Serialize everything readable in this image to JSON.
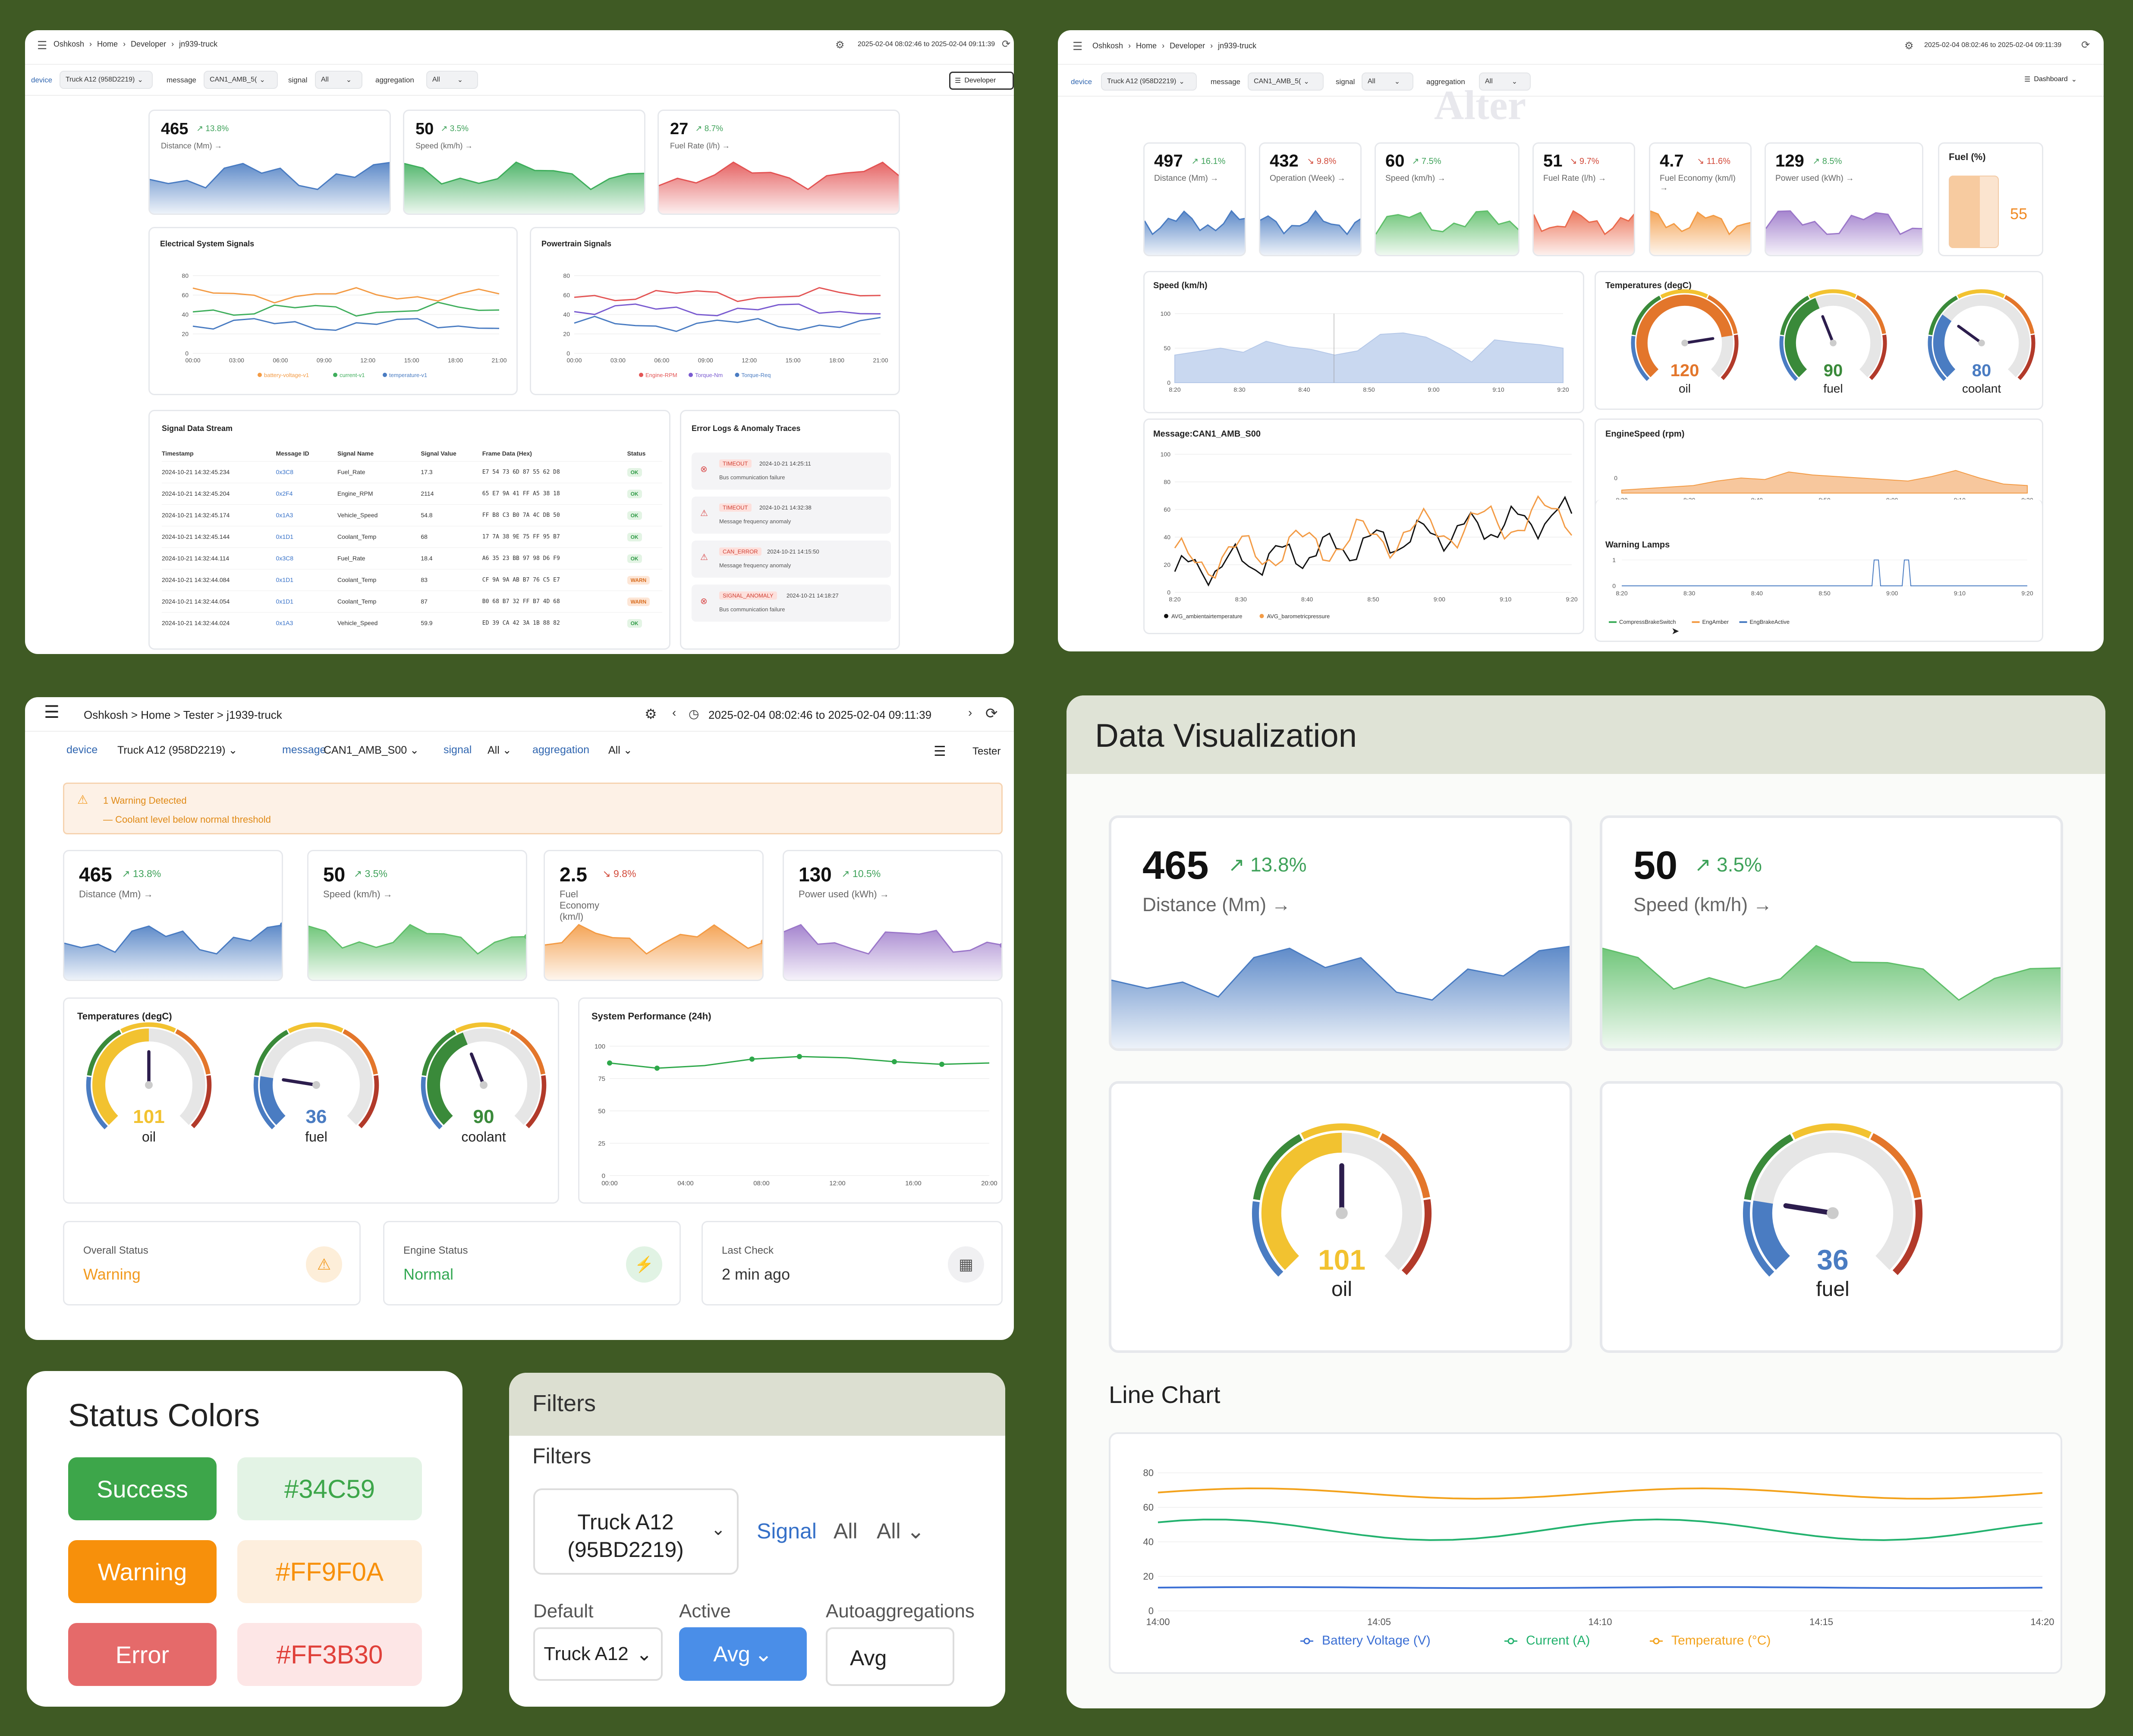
{
  "p1": {
    "breadcrumb": [
      "Oshkosh",
      "Home",
      "Developer",
      "jn939-truck"
    ],
    "range": "2025-02-04 08:02:46 to 2025-02-04 09:11:39",
    "filters": {
      "device_label": "device",
      "device": "Truck A12 (958D2219)",
      "message_label": "message",
      "message": "CAN1_AMB_5(",
      "signal_label": "signal",
      "signal": "All",
      "aggregation_label": "aggregation",
      "aggregation": "All"
    },
    "role": "Developer",
    "kpis": [
      {
        "value": "465",
        "delta": "13.8%",
        "label": "Distance (Mm) →",
        "color": "#4a7cc2",
        "dir": "up"
      },
      {
        "value": "50",
        "delta": "3.5%",
        "label": "Speed (km/h) →",
        "color": "#3fae5c",
        "dir": "up"
      },
      {
        "value": "27",
        "delta": "8.7%",
        "label": "Fuel Rate (l/h) →",
        "color": "#e35454",
        "dir": "up"
      }
    ],
    "elec_title": "Electrical System Signals",
    "power_title": "Powertrain Signals",
    "yticks": [
      "80",
      "60",
      "40",
      "20",
      "0"
    ],
    "xticks": [
      "00:00",
      "03:00",
      "06:00",
      "09:00",
      "12:00",
      "15:00",
      "18:00",
      "21:00"
    ],
    "elec_legend": [
      "battery-voltage-v1",
      "current-v1",
      "temperature-v1"
    ],
    "power_legend": [
      "Engine-RPM",
      "Torque-Nm",
      "Torque-Req"
    ],
    "stream_title": "Signal Data Stream",
    "stream_headers": [
      "Timestamp",
      "Message ID",
      "Signal Name",
      "Signal Value",
      "Frame Data (Hex)",
      "Status"
    ],
    "stream_rows": [
      [
        "2024-10-21 14:32:45.234",
        "0x3C8",
        "Fuel_Rate",
        "17.3",
        "E7 54 73 6D 87 55 62 D8",
        "OK"
      ],
      [
        "2024-10-21 14:32:45.204",
        "0x2F4",
        "Engine_RPM",
        "2114",
        "65 E7 9A 41 FF A5 38 18",
        "OK"
      ],
      [
        "2024-10-21 14:32:45.174",
        "0x1A3",
        "Vehicle_Speed",
        "54.8",
        "FF B8 C3 B0 7A 4C DB 50",
        "OK"
      ],
      [
        "2024-10-21 14:32:45.144",
        "0x1D1",
        "Coolant_Temp",
        "68",
        "17 7A 38 9E 75 FF 95 B7",
        "OK"
      ],
      [
        "2024-10-21 14:32:44.114",
        "0x3C8",
        "Fuel_Rate",
        "18.4",
        "A6 35 23 BB 97 98 D6 F9",
        "OK"
      ],
      [
        "2024-10-21 14:32:44.084",
        "0x1D1",
        "Coolant_Temp",
        "83",
        "CF 9A 9A AB B7 76 C5 E7",
        "WARN"
      ],
      [
        "2024-10-21 14:32:44.054",
        "0x1D1",
        "Coolant_Temp",
        "87",
        "B0 68 B7 32 FF B7 4D 68",
        "WARN"
      ],
      [
        "2024-10-21 14:32:44.024",
        "0x1A3",
        "Vehicle_Speed",
        "59.9",
        "ED 39 CA 42 3A 1B 88 82",
        "OK"
      ]
    ],
    "errors_title": "Error Logs & Anomaly Traces",
    "errors": [
      {
        "tag": "TIMEOUT",
        "time": "2024-10-21 14:25:11",
        "msg": "Bus communication failure",
        "kind": "x"
      },
      {
        "tag": "TIMEOUT",
        "time": "2024-10-21 14:32:38",
        "msg": "Message frequency anomaly",
        "kind": "w"
      },
      {
        "tag": "CAN_ERROR",
        "time": "2024-10-21 14:15:50",
        "msg": "Message frequency anomaly",
        "kind": "w"
      },
      {
        "tag": "SIGNAL_ANOMALY",
        "time": "2024-10-21 14:18:27",
        "msg": "Bus communication failure",
        "kind": "x"
      }
    ]
  },
  "p2": {
    "breadcrumb": [
      "Oshkosh",
      "Home",
      "Developer",
      "jn939-truck"
    ],
    "range": "2025-02-04 08:02:46 to 2025-02-04 09:11:39",
    "filters": {
      "device_label": "device",
      "device": "Truck A12 (958D2219)",
      "message_label": "message",
      "message": "CAN1_AMB_5(",
      "signal_label": "signal",
      "signal": "All",
      "aggregation_label": "aggregation",
      "aggregation": "All"
    },
    "role": "Dashboard",
    "watermark": "Alter",
    "kpis": [
      {
        "value": "497",
        "delta": "16.1%",
        "label": "Distance (Mm) →",
        "color": "#4a7cc2",
        "dir": "up"
      },
      {
        "value": "432",
        "delta": "9.8%",
        "label": "Operation (Week) →",
        "color": "#4a7cc2",
        "dir": "down"
      },
      {
        "value": "60",
        "delta": "7.5%",
        "label": "Speed (km/h) →",
        "color": "#5fbf6a",
        "dir": "up"
      },
      {
        "value": "51",
        "delta": "9.7%",
        "label": "Fuel Rate (l/h) →",
        "color": "#ea6a4d",
        "dir": "down"
      },
      {
        "value": "4.7",
        "delta": "11.6%",
        "label": "Fuel Economy (km/l) →",
        "color": "#f39b45",
        "dir": "down"
      },
      {
        "value": "129",
        "delta": "8.5%",
        "label": "Power used (kWh) →",
        "color": "#9b77c9",
        "dir": "up"
      }
    ],
    "fuel": {
      "title": "Fuel (%)",
      "value": "55",
      "level": 0.55
    },
    "speed_title": "Speed (km/h)",
    "speed_yticks": [
      "100",
      "50",
      "0"
    ],
    "time_ticks": [
      "8:20",
      "8:30",
      "8:40",
      "8:50",
      "9:00",
      "9:10",
      "9:20"
    ],
    "temps_title": "Temperatures (degC)",
    "gauges": [
      {
        "value": "120",
        "label": "oil",
        "color": "#e3762b",
        "frac": 0.8
      },
      {
        "value": "90",
        "label": "fuel",
        "color": "#3a8a3a",
        "frac": 0.42
      },
      {
        "value": "80",
        "label": "coolant",
        "color": "#4a7cc2",
        "frac": 0.3
      }
    ],
    "msg_title": "Message:CAN1_AMB_S00",
    "msg_yticks": [
      "100",
      "80",
      "60",
      "40",
      "20",
      "0"
    ],
    "msg_legend": [
      "AVG_ambientairtemperature",
      "AVG_barometricpressure"
    ],
    "rpm_title": "EngineSpeed (rpm)",
    "rpm_yticks": [
      "0"
    ],
    "lamps_title": "Warning Lamps",
    "lamps_yticks": [
      "1",
      "0"
    ],
    "lamps_legend": [
      "CompressBrakeSwitch",
      "EngAmber",
      "EngBrakeActive"
    ]
  },
  "p3": {
    "breadcrumb": "Oshkosh > Home > Tester > j1939-truck",
    "range": "2025-02-04 08:02:46 to 2025-02-04 09:11:39",
    "filters": {
      "device_label": "device",
      "device": "Truck A12 (958D2219)",
      "message_label": "message",
      "message": "CAN1_AMB_S00",
      "signal_label": "signal",
      "signal": "All",
      "aggregation_label": "aggregation",
      "aggregation": "All"
    },
    "role": "Tester",
    "alert_title": "1 Warning Detected",
    "alert_msg": "— Coolant level below normal threshold",
    "kpis": [
      {
        "value": "465",
        "delta": "13.8%",
        "label": "Distance (Mm) →",
        "color": "#4a7cc2",
        "dir": "up"
      },
      {
        "value": "50",
        "delta": "3.5%",
        "label": "Speed (km/h) →",
        "color": "#5fbf6a",
        "dir": "up"
      },
      {
        "value": "2.5",
        "delta": "9.8%",
        "label": "Fuel Economy (km/l)",
        "color": "#f39b45",
        "dir": "down"
      },
      {
        "value": "130",
        "delta": "10.5%",
        "label": "Power used (kWh) →",
        "color": "#9b77c9",
        "dir": "up"
      }
    ],
    "temps_title": "Temperatures (degC)",
    "gauges": [
      {
        "value": "101",
        "label": "oil",
        "color": "#f2c230",
        "frac": 0.5
      },
      {
        "value": "36",
        "label": "fuel",
        "color": "#4a7cc2",
        "frac": 0.2
      },
      {
        "value": "90",
        "label": "coolant",
        "color": "#3a8a3a",
        "frac": 0.42
      }
    ],
    "perf_title": "System Performance (24h)",
    "perf_yticks": [
      "100",
      "75",
      "50",
      "25",
      "0"
    ],
    "perf_xticks": [
      "00:00",
      "04:00",
      "08:00",
      "12:00",
      "16:00",
      "20:00"
    ],
    "status": [
      {
        "label": "Overall Status",
        "value": "Warning",
        "color": "#f29a1f"
      },
      {
        "label": "Engine Status",
        "value": "Normal",
        "color": "#34a853"
      },
      {
        "label": "Last Check",
        "value": "2 min ago",
        "color": "#333"
      }
    ]
  },
  "p4": {
    "title": "Data Visualization",
    "kpis": [
      {
        "value": "465",
        "delta": "13.8%",
        "label": "Distance (Mm) →",
        "color": "#4a7cc2"
      },
      {
        "value": "50",
        "delta": "3.5%",
        "label": "Speed (km/h) →",
        "color": "#5fbf6a"
      }
    ],
    "gauges": [
      {
        "value": "101",
        "label": "oil",
        "color": "#f2c230",
        "frac": 0.5
      },
      {
        "value": "36",
        "label": "fuel",
        "color": "#4a7cc2",
        "frac": 0.2
      }
    ],
    "line_title": "Line Chart",
    "yticks": [
      "80",
      "60",
      "40",
      "20",
      "0"
    ],
    "xticks": [
      "14:00",
      "14:05",
      "14:10",
      "14:15",
      "14:20"
    ],
    "legend": [
      "Battery Voltage (V)",
      "Current (A)",
      "Temperature (°C)"
    ]
  },
  "p5": {
    "title": "Status Colors",
    "items": [
      {
        "name": "Success",
        "hex": "#34C59",
        "bg": "#3da64a",
        "soft": "#e3f3e5",
        "text": "#3da64a"
      },
      {
        "name": "Warning",
        "hex": "#FF9F0A",
        "bg": "#f7900b",
        "soft": "#fdeedd",
        "text": "#f7900b"
      },
      {
        "name": "Error",
        "hex": "#FF3B30",
        "bg": "#e56a6a",
        "soft": "#fde6e6",
        "text": "#e0403a"
      }
    ]
  },
  "p6": {
    "header": "Filters",
    "sub": "Filters",
    "device": "Truck A12 (95BD2219)",
    "signal_label": "Signal",
    "signal_all": "All",
    "signal_select": "All",
    "default_label": "Default",
    "default_value": "Truck A12",
    "active_label": "Active",
    "active_value": "Avg",
    "auto_label": "Autoaggregations",
    "auto_value": "Avg"
  }
}
